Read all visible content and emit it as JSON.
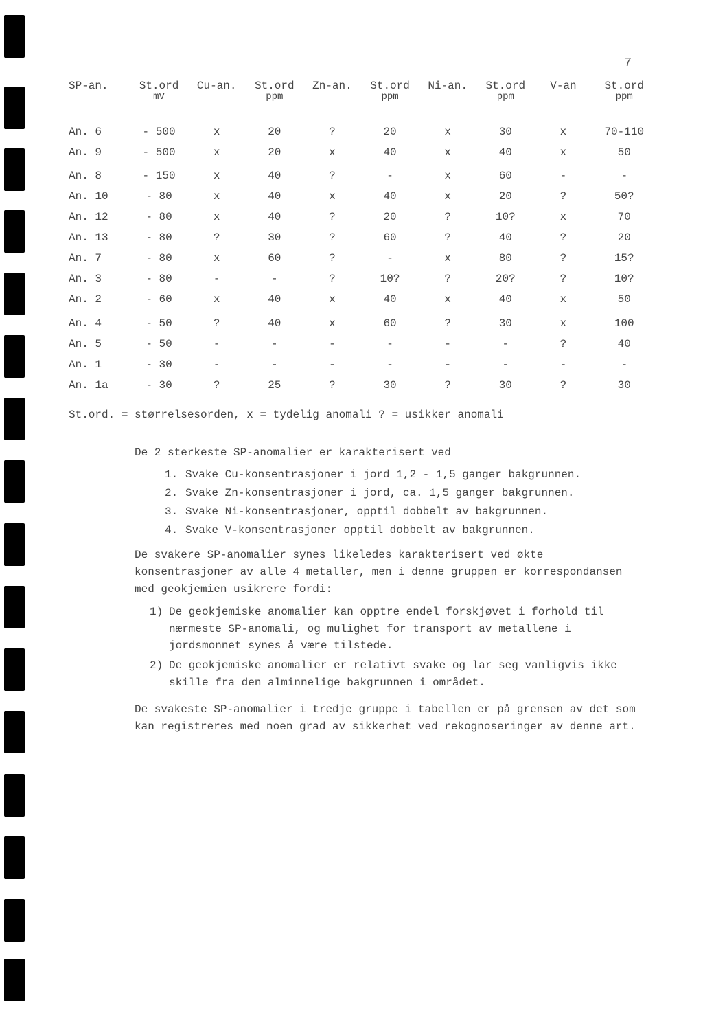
{
  "page_number": "7",
  "binding_mark_positions": [
    22,
    126,
    216,
    306,
    397,
    488,
    579,
    670,
    762,
    853,
    944,
    1035,
    1127,
    1218,
    1309,
    1396
  ],
  "table": {
    "columns": [
      {
        "top": "SP-an.",
        "sub": ""
      },
      {
        "top": "St.ord",
        "sub": "mV"
      },
      {
        "top": "Cu-an.",
        "sub": ""
      },
      {
        "top": "St.ord",
        "sub": "ppm"
      },
      {
        "top": "Zn-an.",
        "sub": ""
      },
      {
        "top": "St.ord",
        "sub": "ppm"
      },
      {
        "top": "Ni-an.",
        "sub": ""
      },
      {
        "top": "St.ord",
        "sub": "ppm"
      },
      {
        "top": "V-an",
        "sub": ""
      },
      {
        "top": "St.ord",
        "sub": "ppm"
      }
    ],
    "groups": [
      [
        [
          "An. 6",
          "- 500",
          "x",
          "20",
          "?",
          "20",
          "x",
          "30",
          "x",
          "70-110"
        ],
        [
          "An. 9",
          "- 500",
          "x",
          "20",
          "x",
          "40",
          "x",
          "40",
          "x",
          "50"
        ]
      ],
      [
        [
          "An. 8",
          "- 150",
          "x",
          "40",
          "?",
          "-",
          "x",
          "60",
          "-",
          "-"
        ],
        [
          "An. 10",
          "-  80",
          "x",
          "40",
          "x",
          "40",
          "x",
          "20",
          "?",
          "50?"
        ],
        [
          "An. 12",
          "-  80",
          "x",
          "40",
          "?",
          "20",
          "?",
          "10?",
          "x",
          "70"
        ],
        [
          "An. 13",
          "-  80",
          "?",
          "30",
          "?",
          "60",
          "?",
          "40",
          "?",
          "20"
        ],
        [
          "An. 7",
          "-  80",
          "x",
          "60",
          "?",
          "-",
          "x",
          "80",
          "?",
          "15?"
        ],
        [
          "An. 3",
          "-  80",
          "-",
          "-",
          "?",
          "10?",
          "?",
          "20?",
          "?",
          "10?"
        ],
        [
          "An. 2",
          "-  60",
          "x",
          "40",
          "x",
          "40",
          "x",
          "40",
          "x",
          "50"
        ]
      ],
      [
        [
          "An. 4",
          "-  50",
          "?",
          "40",
          "x",
          "60",
          "?",
          "30",
          "x",
          "100"
        ],
        [
          "An. 5",
          "-  50",
          "-",
          "-",
          "-",
          "-",
          "-",
          "-",
          "?",
          "40"
        ],
        [
          "An. 1",
          "-  30",
          "-",
          "-",
          "-",
          "-",
          "-",
          "-",
          "-",
          "-"
        ],
        [
          "An. 1a",
          "-  30",
          "?",
          "25",
          "?",
          "30",
          "?",
          "30",
          "?",
          "30"
        ]
      ]
    ]
  },
  "legend": "St.ord. = størrelsesorden,  x = tydelig anomali    ? = usikker anomali",
  "body": {
    "intro": "De 2 sterkeste SP-anomalier er karakterisert ved",
    "list1": [
      "Svake Cu-konsentrasjoner i jord  1,2 - 1,5 ganger bakgrunnen.",
      "Svake Zn-konsentrasjoner i jord, ca. 1,5 ganger bakgrunnen.",
      "Svake Ni-konsentrasjoner, opptil dobbelt av bakgrunnen.",
      "Svake V-konsentrasjoner  opptil dobbelt av bakgrunnen."
    ],
    "para2": "De svakere SP-anomalier synes likeledes karakterisert ved økte konsentrasjoner av alle 4 metaller, men i denne gruppen er korrespondansen med geokjemien usikrere fordi:",
    "list2": [
      "De geokjemiske anomalier kan opptre endel forskjøvet i forhold til nærmeste SP-anomali, og mulighet for transport av metallene i jordsmonnet synes å være tilstede.",
      "De geokjemiske anomalier er relativt svake og lar seg vanligvis ikke skille fra den alminnelige bakgrunnen i området."
    ],
    "para3": "De svakeste SP-anomalier i tredje gruppe i tabellen er på grensen av det som kan registreres med noen grad av sikkerhet ved rekognoseringer av denne art."
  },
  "style": {
    "background_color": "#ffffff",
    "text_color": "#444444",
    "rule_color": "#000000",
    "font_family": "Courier New",
    "body_fontsize": 16,
    "header_fontsize": 16
  }
}
